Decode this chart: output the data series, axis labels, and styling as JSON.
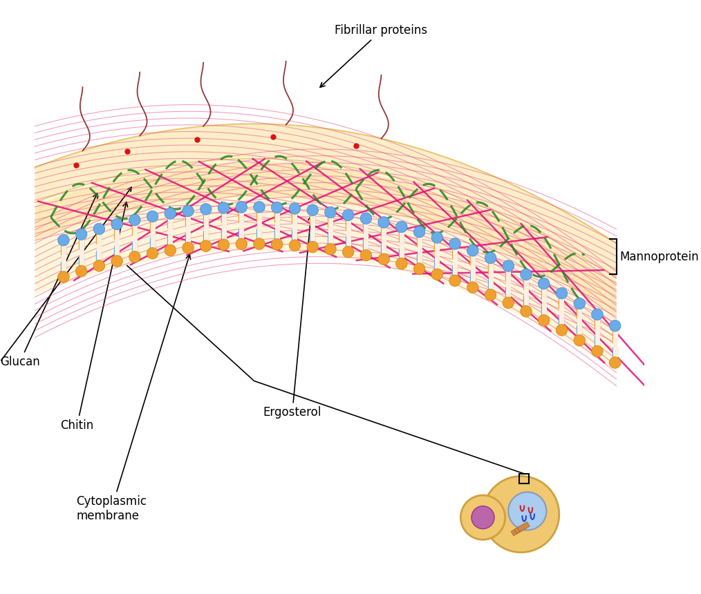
{
  "background_color": "#ffffff",
  "title": "",
  "labels": {
    "fibrillar_proteins": "Fibrillar proteins",
    "mannoprotein": "Mannoprotein",
    "glucan": "Glucan",
    "chitin": "Chitin",
    "ergosterol": "Ergosterol",
    "cytoplasmic_membrane": "Cytoplasmic\nmembrane"
  },
  "colors": {
    "outer_layer_fill": "#fef5e0",
    "outer_layer_edge": "#f0d090",
    "pink_grid": "#e8508a",
    "pink_grid_alpha": 0.5,
    "magenta_lines": "#e8208a",
    "green_chitin": "#228822",
    "blue_head": "#6aabe8",
    "orange_tail": "#f0a030",
    "red_dot": "#dd2222",
    "fibril_color": "#883333",
    "cell_body": "#f0c870",
    "cell_outline": "#d0a040",
    "nucleus_fill": "#aaccee",
    "nucleus_outline": "#8899bb",
    "vacuole_fill": "#bb66aa",
    "organelle_fill": "#cc8844"
  },
  "figsize": [
    10.14,
    8.6
  ],
  "dpi": 100
}
